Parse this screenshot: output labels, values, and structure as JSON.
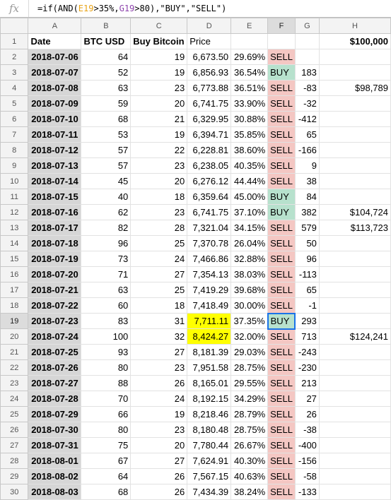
{
  "formula": {
    "fx": "fx",
    "parts": [
      {
        "t": "=if(AND(",
        "c": "default"
      },
      {
        "t": "E19",
        "c": "ref1"
      },
      {
        "t": ">35%,",
        "c": "default"
      },
      {
        "t": "G19",
        "c": "ref2"
      },
      {
        "t": ">80),\"BUY\",\"SELL\")",
        "c": "default"
      }
    ]
  },
  "columns": [
    "A",
    "B",
    "C",
    "D",
    "E",
    "F",
    "G",
    "H"
  ],
  "header_row": {
    "row": "1",
    "a": "Date",
    "b": "BTC USD",
    "c": "Buy Bitcoin",
    "d": "Price",
    "e": "",
    "f": "",
    "g": "",
    "h": "$100,000"
  },
  "rows": [
    {
      "row": "2",
      "a": "2018-07-06",
      "b": "64",
      "c": "19",
      "d": "6,673.50",
      "e": "29.69%",
      "f": "SELL",
      "g": "",
      "h": ""
    },
    {
      "row": "3",
      "a": "2018-07-07",
      "b": "52",
      "c": "19",
      "d": "6,856.93",
      "e": "36.54%",
      "f": "BUY",
      "g": "183",
      "h": ""
    },
    {
      "row": "4",
      "a": "2018-07-08",
      "b": "63",
      "c": "23",
      "d": "6,773.88",
      "e": "36.51%",
      "f": "SELL",
      "g": "-83",
      "h": "$98,789"
    },
    {
      "row": "5",
      "a": "2018-07-09",
      "b": "59",
      "c": "20",
      "d": "6,741.75",
      "e": "33.90%",
      "f": "SELL",
      "g": "-32",
      "h": ""
    },
    {
      "row": "6",
      "a": "2018-07-10",
      "b": "68",
      "c": "21",
      "d": "6,329.95",
      "e": "30.88%",
      "f": "SELL",
      "g": "-412",
      "h": ""
    },
    {
      "row": "7",
      "a": "2018-07-11",
      "b": "53",
      "c": "19",
      "d": "6,394.71",
      "e": "35.85%",
      "f": "SELL",
      "g": "65",
      "h": ""
    },
    {
      "row": "8",
      "a": "2018-07-12",
      "b": "57",
      "c": "22",
      "d": "6,228.81",
      "e": "38.60%",
      "f": "SELL",
      "g": "-166",
      "h": ""
    },
    {
      "row": "9",
      "a": "2018-07-13",
      "b": "57",
      "c": "23",
      "d": "6,238.05",
      "e": "40.35%",
      "f": "SELL",
      "g": "9",
      "h": ""
    },
    {
      "row": "10",
      "a": "2018-07-14",
      "b": "45",
      "c": "20",
      "d": "6,276.12",
      "e": "44.44%",
      "f": "SELL",
      "g": "38",
      "h": ""
    },
    {
      "row": "11",
      "a": "2018-07-15",
      "b": "40",
      "c": "18",
      "d": "6,359.64",
      "e": "45.00%",
      "f": "BUY",
      "g": "84",
      "h": ""
    },
    {
      "row": "12",
      "a": "2018-07-16",
      "b": "62",
      "c": "23",
      "d": "6,741.75",
      "e": "37.10%",
      "f": "BUY",
      "g": "382",
      "h": "$104,724"
    },
    {
      "row": "13",
      "a": "2018-07-17",
      "b": "82",
      "c": "28",
      "d": "7,321.04",
      "e": "34.15%",
      "f": "SELL",
      "g": "579",
      "h": "$113,723"
    },
    {
      "row": "14",
      "a": "2018-07-18",
      "b": "96",
      "c": "25",
      "d": "7,370.78",
      "e": "26.04%",
      "f": "SELL",
      "g": "50",
      "h": ""
    },
    {
      "row": "15",
      "a": "2018-07-19",
      "b": "73",
      "c": "24",
      "d": "7,466.86",
      "e": "32.88%",
      "f": "SELL",
      "g": "96",
      "h": ""
    },
    {
      "row": "16",
      "a": "2018-07-20",
      "b": "71",
      "c": "27",
      "d": "7,354.13",
      "e": "38.03%",
      "f": "SELL",
      "g": "-113",
      "h": ""
    },
    {
      "row": "17",
      "a": "2018-07-21",
      "b": "63",
      "c": "25",
      "d": "7,419.29",
      "e": "39.68%",
      "f": "SELL",
      "g": "65",
      "h": ""
    },
    {
      "row": "18",
      "a": "2018-07-22",
      "b": "60",
      "c": "18",
      "d": "7,418.49",
      "e": "30.00%",
      "f": "SELL",
      "g": "-1",
      "h": ""
    },
    {
      "row": "19",
      "a": "2018-07-23",
      "b": "83",
      "c": "31",
      "d": "7,711.11",
      "e": "37.35%",
      "f": "BUY",
      "g": "293",
      "h": ""
    },
    {
      "row": "20",
      "a": "2018-07-24",
      "b": "100",
      "c": "32",
      "d": "8,424.27",
      "e": "32.00%",
      "f": "SELL",
      "g": "713",
      "h": "$124,241"
    },
    {
      "row": "21",
      "a": "2018-07-25",
      "b": "93",
      "c": "27",
      "d": "8,181.39",
      "e": "29.03%",
      "f": "SELL",
      "g": "-243",
      "h": ""
    },
    {
      "row": "22",
      "a": "2018-07-26",
      "b": "80",
      "c": "23",
      "d": "7,951.58",
      "e": "28.75%",
      "f": "SELL",
      "g": "-230",
      "h": ""
    },
    {
      "row": "23",
      "a": "2018-07-27",
      "b": "88",
      "c": "26",
      "d": "8,165.01",
      "e": "29.55%",
      "f": "SELL",
      "g": "213",
      "h": ""
    },
    {
      "row": "24",
      "a": "2018-07-28",
      "b": "70",
      "c": "24",
      "d": "8,192.15",
      "e": "34.29%",
      "f": "SELL",
      "g": "27",
      "h": ""
    },
    {
      "row": "25",
      "a": "2018-07-29",
      "b": "66",
      "c": "19",
      "d": "8,218.46",
      "e": "28.79%",
      "f": "SELL",
      "g": "26",
      "h": ""
    },
    {
      "row": "26",
      "a": "2018-07-30",
      "b": "80",
      "c": "23",
      "d": "8,180.48",
      "e": "28.75%",
      "f": "SELL",
      "g": "-38",
      "h": ""
    },
    {
      "row": "27",
      "a": "2018-07-31",
      "b": "75",
      "c": "20",
      "d": "7,780.44",
      "e": "26.67%",
      "f": "SELL",
      "g": "-400",
      "h": ""
    },
    {
      "row": "28",
      "a": "2018-08-01",
      "b": "67",
      "c": "27",
      "d": "7,624.91",
      "e": "40.30%",
      "f": "SELL",
      "g": "-156",
      "h": ""
    },
    {
      "row": "29",
      "a": "2018-08-02",
      "b": "64",
      "c": "26",
      "d": "7,567.15",
      "e": "40.63%",
      "f": "SELL",
      "g": "-58",
      "h": ""
    },
    {
      "row": "30",
      "a": "2018-08-03",
      "b": "68",
      "c": "26",
      "d": "7,434.39",
      "e": "38.24%",
      "f": "SELL",
      "g": "-133",
      "h": ""
    }
  ],
  "highlight": {
    "yellow_rows": [
      "19",
      "20"
    ],
    "selected_cell": "F19"
  },
  "colors": {
    "sell": "#f4c7c3",
    "buy": "#b7e1cd",
    "yellow": "#ffff00",
    "date_bg": "#d6d6d6",
    "selection": "#1a73e8"
  }
}
